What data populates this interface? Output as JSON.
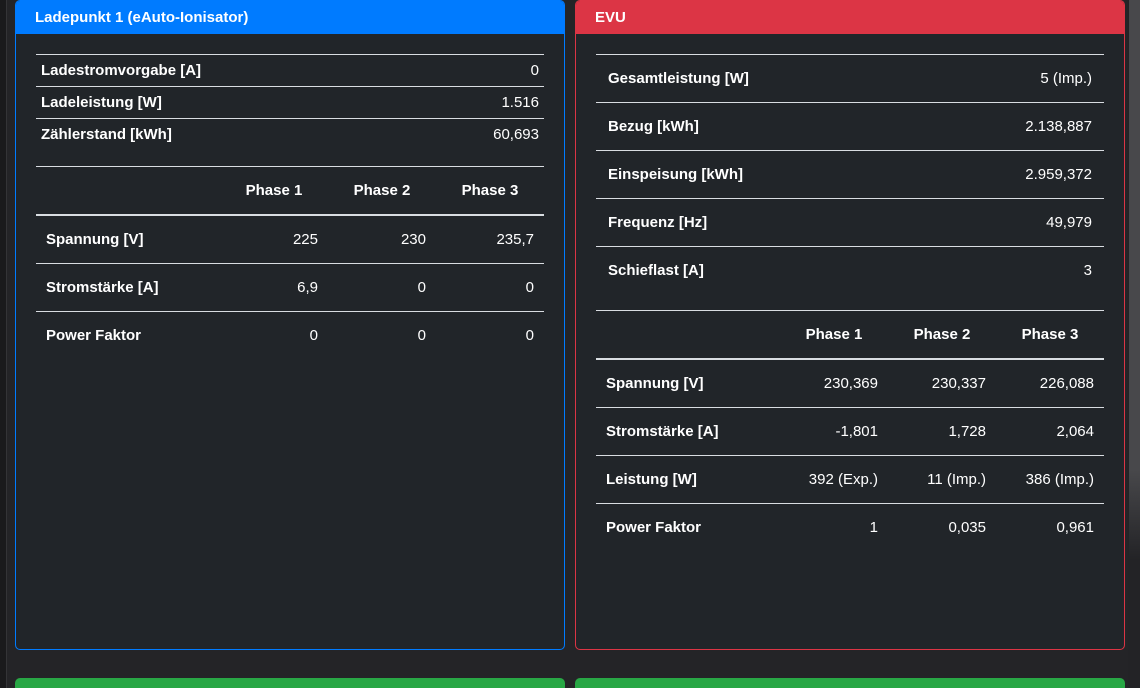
{
  "theme": {
    "page_bg": "#242427",
    "card_bg": "#212529",
    "blue": "#007bff",
    "red": "#dc3545",
    "green": "#28a745",
    "line": "#d9dde1"
  },
  "left_card": {
    "title": "Ladepunkt 1 (eAuto-Ionisator)",
    "kv_rows": [
      {
        "label": "Ladestromvorgabe [A]",
        "value": "0"
      },
      {
        "label": "Ladeleistung [W]",
        "value": "1.516"
      },
      {
        "label": "Zählerstand [kWh]",
        "value": "60,693"
      }
    ],
    "phase_headers": [
      "Phase 1",
      "Phase 2",
      "Phase 3"
    ],
    "phase_rows": [
      {
        "label": "Spannung [V]",
        "p1": "225",
        "p2": "230",
        "p3": "235,7"
      },
      {
        "label": "Stromstärke [A]",
        "p1": "6,9",
        "p2": "0",
        "p3": "0"
      },
      {
        "label": "Power Faktor",
        "p1": "0",
        "p2": "0",
        "p3": "0"
      }
    ]
  },
  "right_card": {
    "title": "EVU",
    "kv_rows": [
      {
        "label": "Gesamtleistung [W]",
        "value": "5 (Imp.)"
      },
      {
        "label": "Bezug [kWh]",
        "value": "2.138,887"
      },
      {
        "label": "Einspeisung [kWh]",
        "value": "2.959,372"
      },
      {
        "label": "Frequenz [Hz]",
        "value": "49,979"
      },
      {
        "label": "Schieflast [A]",
        "value": "3"
      }
    ],
    "phase_headers": [
      "Phase 1",
      "Phase 2",
      "Phase 3"
    ],
    "phase_rows": [
      {
        "label": "Spannung [V]",
        "p1": "230,369",
        "p2": "230,337",
        "p3": "226,088"
      },
      {
        "label": "Stromstärke [A]",
        "p1": "-1,801",
        "p2": "1,728",
        "p3": "2,064"
      },
      {
        "label": "Leistung [W]",
        "p1": "392 (Exp.)",
        "p2": "11 (Imp.)",
        "p3": "386 (Imp.)"
      },
      {
        "label": "Power Faktor",
        "p1": "1",
        "p2": "0,035",
        "p3": "0,961"
      }
    ]
  }
}
